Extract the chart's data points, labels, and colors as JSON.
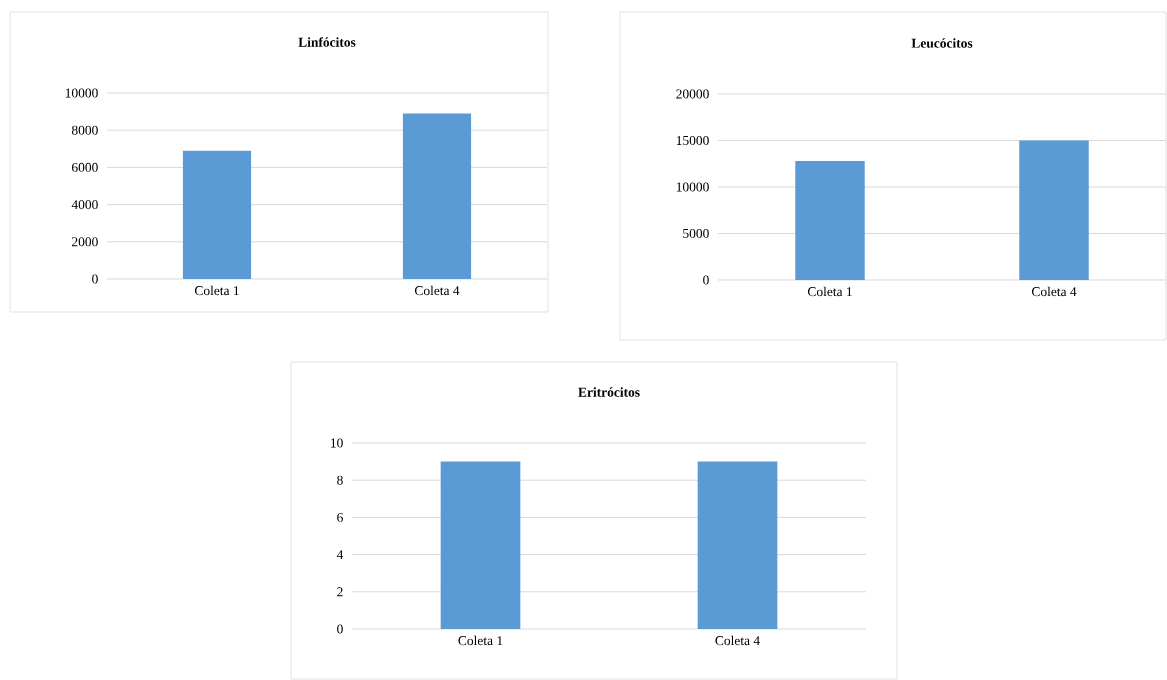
{
  "chart_data": [
    {
      "type": "bar",
      "title": "Linfócitos",
      "categories": [
        "Coleta 1",
        "Coleta 4"
      ],
      "values": [
        6900,
        8900
      ],
      "color": "#5b9bd5",
      "ylim": [
        0,
        10000
      ],
      "yticks": [
        0,
        2000,
        4000,
        6000,
        8000,
        10000
      ],
      "grid": "y"
    },
    {
      "type": "bar",
      "title": "Leucócitos",
      "categories": [
        "Coleta 1",
        "Coleta 4"
      ],
      "values": [
        12800,
        15000
      ],
      "color": "#5b9bd5",
      "ylim": [
        0,
        20000
      ],
      "yticks": [
        0,
        5000,
        10000,
        15000,
        20000
      ],
      "grid": "y"
    },
    {
      "type": "bar",
      "title": "Eritrócitos",
      "categories": [
        "Coleta 1",
        "Coleta 4"
      ],
      "values": [
        9,
        9
      ],
      "color": "#5b9bd5",
      "ylim": [
        0,
        10
      ],
      "yticks": [
        0,
        2,
        4,
        6,
        8,
        10
      ],
      "grid": "y"
    }
  ]
}
